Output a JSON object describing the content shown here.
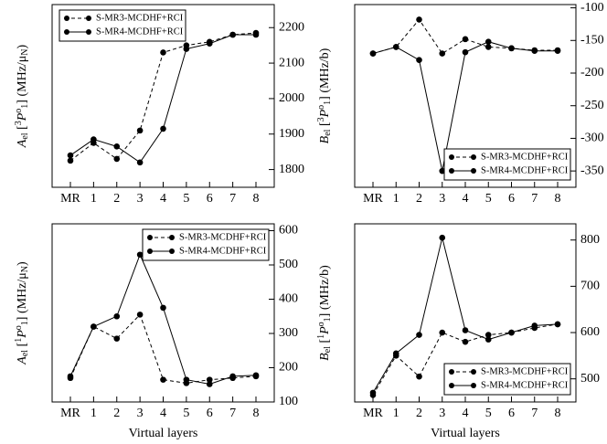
{
  "chart_data": [
    {
      "type": "line",
      "panel": "top-left",
      "ylabel": [
        [
          "A",
          "i"
        ],
        [
          "el",
          "sub"
        ],
        [
          " [",
          ""
        ],
        [
          "3",
          "sup"
        ],
        [
          "P",
          "i"
        ],
        [
          "o",
          "sup"
        ],
        [
          "1",
          "sub"
        ],
        [
          "] (MHz/μ",
          ""
        ],
        [
          "N",
          "sub"
        ],
        [
          ")",
          ""
        ]
      ],
      "categories": [
        "MR",
        "1",
        "2",
        "3",
        "4",
        "5",
        "6",
        "7",
        "8"
      ],
      "ylim": [
        1750,
        2265
      ],
      "yticks": [
        1800,
        1900,
        2000,
        2100,
        2200
      ],
      "yaxis_side": "right",
      "grid": false,
      "legend": "upper-left",
      "series": [
        {
          "name": "S-MR3-MCDHF+RCI",
          "color": "#000000",
          "dashed": true,
          "values": [
            1825,
            1875,
            1830,
            1910,
            2130,
            2150,
            2160,
            2180,
            2185
          ]
        },
        {
          "name": "S-MR4-MCDHF+RCI",
          "color": "#000000",
          "dashed": false,
          "values": [
            1840,
            1885,
            1865,
            1820,
            1915,
            2140,
            2155,
            2180,
            2180
          ]
        }
      ]
    },
    {
      "type": "line",
      "panel": "top-right",
      "ylabel": [
        [
          "B",
          "i"
        ],
        [
          "el",
          "sub"
        ],
        [
          " [",
          ""
        ],
        [
          "3",
          "sup"
        ],
        [
          "P",
          "i"
        ],
        [
          "o",
          "sup"
        ],
        [
          "1",
          "sub"
        ],
        [
          "] (MHz/b)",
          ""
        ]
      ],
      "categories": [
        "MR",
        "1",
        "2",
        "3",
        "4",
        "5",
        "6",
        "7",
        "8"
      ],
      "ylim": [
        -375,
        -95
      ],
      "yticks": [
        -350,
        -300,
        -250,
        -200,
        -150,
        -100
      ],
      "yaxis_side": "right",
      "grid": false,
      "legend": "lower-right",
      "series": [
        {
          "name": "S-MR3-MCDHF+RCI",
          "color": "#000000",
          "dashed": true,
          "values": [
            -170,
            -160,
            -118,
            -170,
            -148,
            -160,
            -162,
            -165,
            -165
          ]
        },
        {
          "name": "S-MR4-MCDHF+RCI",
          "color": "#000000",
          "dashed": false,
          "values": [
            -170,
            -160,
            -180,
            -350,
            -168,
            -152,
            -162,
            -166,
            -166
          ]
        }
      ]
    },
    {
      "type": "line",
      "panel": "bottom-left",
      "ylabel": [
        [
          "A",
          "i"
        ],
        [
          "el",
          "sub"
        ],
        [
          " [",
          ""
        ],
        [
          "1",
          "sup"
        ],
        [
          "P",
          "i"
        ],
        [
          "o",
          "sup"
        ],
        [
          "1",
          "sub"
        ],
        [
          "] (MHz/μ",
          ""
        ],
        [
          "N",
          "sub"
        ],
        [
          ")",
          ""
        ]
      ],
      "xlabel": "Virtual layers",
      "categories": [
        "MR",
        "1",
        "2",
        "3",
        "4",
        "5",
        "6",
        "7",
        "8"
      ],
      "ylim": [
        100,
        620
      ],
      "yticks": [
        100,
        200,
        300,
        400,
        500,
        600
      ],
      "yaxis_side": "right",
      "grid": false,
      "legend": "upper-right",
      "series": [
        {
          "name": "S-MR3-MCDHF+RCI",
          "color": "#000000",
          "dashed": true,
          "values": [
            170,
            320,
            285,
            355,
            165,
            155,
            165,
            170,
            175
          ]
        },
        {
          "name": "S-MR4-MCDHF+RCI",
          "color": "#000000",
          "dashed": false,
          "values": [
            175,
            320,
            350,
            530,
            375,
            165,
            152,
            175,
            178
          ]
        }
      ]
    },
    {
      "type": "line",
      "panel": "bottom-right",
      "ylabel": [
        [
          "B",
          "i"
        ],
        [
          "el",
          "sub"
        ],
        [
          " [",
          ""
        ],
        [
          "1",
          "sup"
        ],
        [
          "P",
          "i"
        ],
        [
          "o",
          "sup"
        ],
        [
          "1",
          "sub"
        ],
        [
          "] (MHz/b)",
          ""
        ]
      ],
      "xlabel": "Virtual layers",
      "categories": [
        "MR",
        "1",
        "2",
        "3",
        "4",
        "5",
        "6",
        "7",
        "8"
      ],
      "ylim": [
        450,
        835
      ],
      "yticks": [
        500,
        600,
        700,
        800
      ],
      "yaxis_side": "right",
      "grid": false,
      "legend": "lower-right",
      "series": [
        {
          "name": "S-MR3-MCDHF+RCI",
          "color": "#000000",
          "dashed": true,
          "values": [
            465,
            550,
            505,
            600,
            580,
            595,
            600,
            610,
            618
          ]
        },
        {
          "name": "S-MR4-MCDHF+RCI",
          "color": "#000000",
          "dashed": false,
          "values": [
            470,
            555,
            595,
            805,
            605,
            585,
            600,
            615,
            618
          ]
        }
      ]
    }
  ]
}
